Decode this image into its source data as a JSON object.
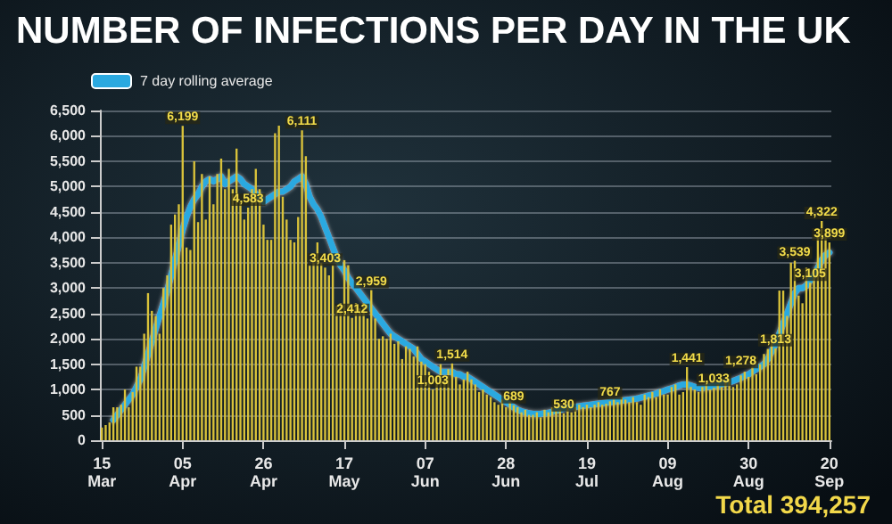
{
  "chart_data": {
    "type": "bar",
    "title": "NUMBER OF INFECTIONS PER DAY IN THE UK",
    "categories": [
      "15 Mar",
      null,
      null,
      null,
      null,
      null,
      null,
      null,
      null,
      null,
      null,
      null,
      null,
      null,
      null,
      null,
      null,
      null,
      null,
      null,
      null,
      "05 Apr",
      null,
      null,
      null,
      null,
      null,
      null,
      null,
      null,
      null,
      null,
      null,
      null,
      null,
      null,
      null,
      null,
      null,
      null,
      null,
      null,
      "26 Apr",
      null,
      null,
      null,
      null,
      null,
      null,
      null,
      null,
      null,
      null,
      null,
      null,
      null,
      null,
      null,
      null,
      null,
      null,
      null,
      null,
      "17 May",
      null,
      null,
      null,
      null,
      null,
      null,
      null,
      null,
      null,
      null,
      null,
      null,
      null,
      null,
      null,
      null,
      null,
      null,
      null,
      null,
      "07 Jun",
      null,
      null,
      null,
      null,
      null,
      null,
      null,
      null,
      null,
      null,
      null,
      null,
      null,
      null,
      null,
      null,
      null,
      null,
      null,
      null,
      "28 Jun",
      null,
      null,
      null,
      null,
      null,
      null,
      null,
      null,
      null,
      null,
      null,
      null,
      null,
      null,
      null,
      null,
      null,
      null,
      null,
      null,
      "19 Jul",
      null,
      null,
      null,
      null,
      null,
      null,
      null,
      null,
      null,
      null,
      null,
      null,
      null,
      null,
      null,
      null,
      null,
      null,
      null,
      null,
      "09 Aug",
      null,
      null,
      null,
      null,
      null,
      null,
      null,
      null,
      null,
      null,
      null,
      null,
      null,
      null,
      null,
      null,
      null,
      null,
      null,
      null,
      "30 Aug",
      null,
      null,
      null,
      null,
      null,
      null,
      null,
      null,
      null,
      null,
      null,
      null,
      null,
      null,
      null,
      null,
      null,
      null,
      null,
      null,
      "20 Sep"
    ],
    "series": [
      {
        "color": "#d9c23a",
        "values": [
          250,
          300,
          350,
          650,
          650,
          700,
          1000,
          650,
          950,
          1450,
          1450,
          2100,
          2900,
          2550,
          2450,
          2100,
          3000,
          3250,
          4250,
          4450,
          4650,
          6199,
          3800,
          3750,
          5500,
          4300,
          5250,
          4350,
          5200,
          4650,
          5250,
          5550,
          4950,
          5350,
          4950,
          5750,
          4700,
          4350,
          4583,
          4950,
          5350,
          4950,
          4250,
          3950,
          3950,
          6050,
          6200,
          4800,
          4350,
          3950,
          3900,
          4400,
          6111,
          5600,
          3450,
          3500,
          3900,
          3500,
          3403,
          3250,
          3450,
          2650,
          2700,
          3550,
          3450,
          2412,
          2700,
          2600,
          2700,
          2400,
          2959,
          2400,
          2000,
          2050,
          2000,
          2100,
          1900,
          1950,
          1600,
          1850,
          1800,
          1650,
          1850,
          1550,
          1500,
          1350,
          1003,
          1250,
          1500,
          1200,
          1400,
          1514,
          1250,
          1100,
          1200,
          1350,
          1200,
          1100,
          950,
          1000,
          900,
          850,
          750,
          700,
          800,
          650,
          750,
          689,
          650,
          550,
          600,
          500,
          500,
          550,
          450,
          600,
          550,
          650,
          580,
          600,
          530,
          650,
          550,
          650,
          700,
          650,
          700,
          650,
          700,
          750,
          700,
          720,
          767,
          800,
          750,
          850,
          800,
          750,
          850,
          750,
          700,
          900,
          850,
          950,
          850,
          1000,
          900,
          900,
          1050,
          1100,
          900,
          950,
          1441,
          1050,
          1000,
          950,
          1050,
          1150,
          1000,
          1033,
          1100,
          1050,
          1150,
          1200,
          1050,
          1100,
          1278,
          1350,
          1250,
          1450,
          1300,
          1500,
          1700,
          1800,
          1950,
          1813,
          2950,
          2950,
          2450,
          3500,
          3539,
          2850,
          2700,
          3400,
          3105,
          3350,
          4050,
          4322,
          4100,
          3899
        ],
        "value_labels": [
          null,
          null,
          null,
          null,
          null,
          null,
          null,
          null,
          null,
          null,
          null,
          null,
          null,
          null,
          null,
          null,
          null,
          null,
          null,
          null,
          null,
          "6,199",
          null,
          null,
          null,
          null,
          null,
          null,
          null,
          null,
          null,
          null,
          null,
          null,
          null,
          null,
          null,
          null,
          "4,583",
          null,
          null,
          null,
          null,
          null,
          null,
          null,
          null,
          null,
          null,
          null,
          null,
          null,
          "6,111",
          null,
          null,
          null,
          null,
          null,
          "3,403",
          null,
          null,
          null,
          null,
          null,
          null,
          "2,412",
          null,
          null,
          null,
          null,
          "2,959",
          null,
          null,
          null,
          null,
          null,
          null,
          null,
          null,
          null,
          null,
          null,
          null,
          null,
          null,
          null,
          "1,003",
          null,
          null,
          null,
          null,
          "1,514",
          null,
          null,
          null,
          null,
          null,
          null,
          null,
          null,
          null,
          null,
          null,
          null,
          null,
          null,
          null,
          "689",
          null,
          null,
          null,
          null,
          null,
          null,
          null,
          null,
          null,
          null,
          null,
          null,
          "530",
          null,
          null,
          null,
          null,
          null,
          null,
          null,
          null,
          null,
          null,
          null,
          "767",
          null,
          null,
          null,
          null,
          null,
          null,
          null,
          null,
          null,
          null,
          null,
          null,
          null,
          null,
          null,
          null,
          null,
          null,
          null,
          "1,441",
          null,
          null,
          null,
          null,
          null,
          null,
          "1,033",
          null,
          null,
          null,
          null,
          null,
          null,
          "1,278",
          null,
          null,
          null,
          null,
          null,
          null,
          null,
          null,
          "1,813",
          null,
          null,
          null,
          null,
          "3,539",
          null,
          null,
          null,
          "3,105",
          null,
          null,
          "4,322",
          null,
          "3,899"
        ]
      },
      {
        "type": "line",
        "name": "7 day rolling average",
        "color": "#2aa9e0",
        "values": [
          null,
          null,
          null,
          400,
          500,
          600,
          700,
          800,
          900,
          1050,
          1200,
          1450,
          1700,
          1950,
          2200,
          2450,
          2700,
          2950,
          3250,
          3550,
          3850,
          4150,
          4400,
          4600,
          4750,
          4850,
          5000,
          5100,
          5150,
          5100,
          5150,
          5200,
          5050,
          5100,
          5150,
          5200,
          5150,
          5050,
          5000,
          4950,
          4850,
          4800,
          4700,
          4750,
          4800,
          4850,
          4900,
          4900,
          4950,
          5000,
          5100,
          5150,
          5200,
          5050,
          4800,
          4650,
          4550,
          4400,
          4200,
          4000,
          3800,
          3600,
          3450,
          3350,
          3200,
          3100,
          3000,
          2900,
          2800,
          2700,
          2600,
          2500,
          2400,
          2300,
          2200,
          2100,
          2050,
          2000,
          1950,
          1900,
          1850,
          1800,
          1700,
          1600,
          1550,
          1500,
          1450,
          1400,
          1350,
          1350,
          1350,
          1350,
          1300,
          1300,
          1250,
          1250,
          1200,
          1150,
          1100,
          1050,
          1000,
          950,
          900,
          850,
          800,
          750,
          700,
          650,
          600,
          570,
          550,
          530,
          520,
          520,
          520,
          530,
          540,
          560,
          580,
          600,
          620,
          640,
          650,
          660,
          670,
          680,
          690,
          700,
          710,
          720,
          730,
          740,
          750,
          760,
          770,
          780,
          790,
          800,
          810,
          820,
          840,
          860,
          880,
          900,
          920,
          950,
          970,
          1000,
          1020,
          1050,
          1080,
          1100,
          1100,
          1080,
          1050,
          1030,
          1030,
          1050,
          1060,
          1070,
          1080,
          1100,
          1120,
          1140,
          1170,
          1200,
          1230,
          1270,
          1300,
          1350,
          1400,
          1450,
          1500,
          1600,
          1750,
          1900,
          2100,
          2300,
          2500,
          2700,
          2900,
          3000,
          3000,
          3050,
          3150,
          3250,
          3400,
          3550,
          3650,
          3700
        ]
      }
    ],
    "ylim": [
      0,
      6500
    ],
    "yticks": [
      0,
      500,
      {
        "value": 1000,
        "label": "1,000"
      },
      {
        "value": 1500,
        "label": "1,500"
      },
      {
        "value": 2000,
        "label": "2,000"
      },
      {
        "value": 2500,
        "label": "2,500"
      },
      {
        "value": 3000,
        "label": "3,000"
      },
      {
        "value": 3500,
        "label": "3,500"
      },
      {
        "value": 4000,
        "label": "4,000"
      },
      {
        "value": 4500,
        "label": "4,500"
      },
      {
        "value": 5000,
        "label": "5,000"
      },
      {
        "value": 5500,
        "label": "5,500"
      },
      {
        "value": 6000,
        "label": "6,000"
      },
      {
        "value": 6500,
        "label": "6,500"
      }
    ],
    "grid": "y",
    "legend": "top left",
    "annotations": [
      "Total 394,257"
    ]
  }
}
